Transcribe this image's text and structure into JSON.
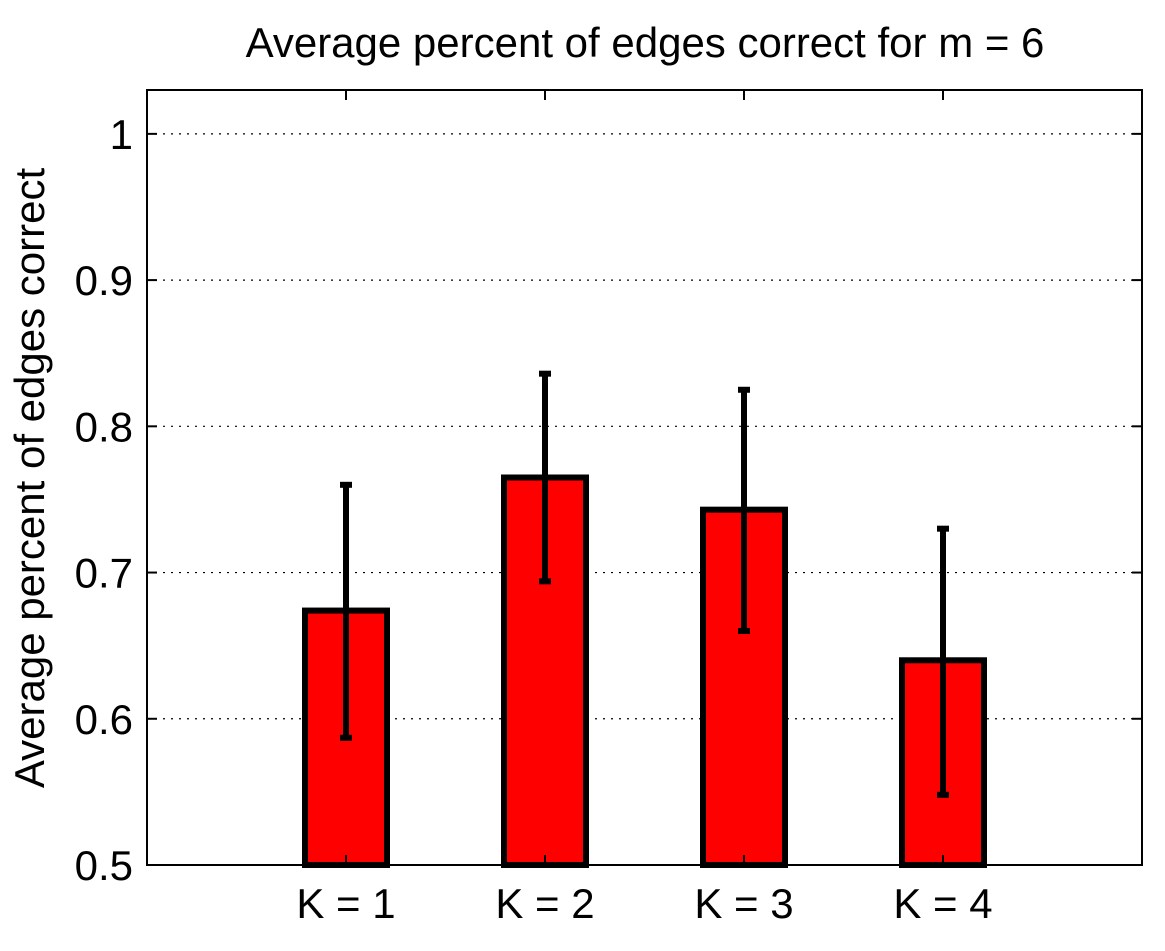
{
  "chart_data": {
    "type": "bar",
    "title": "Average percent of edges correct for m = 6",
    "xlabel": "",
    "ylabel": "Average percent of edges correct",
    "categories": [
      "K = 1",
      "K = 2",
      "K = 3",
      "K = 4"
    ],
    "values": [
      0.674,
      0.765,
      0.743,
      0.64
    ],
    "error_low": [
      0.587,
      0.694,
      0.66,
      0.548
    ],
    "error_high": [
      0.76,
      0.836,
      0.825,
      0.73
    ],
    "ylim": [
      0.5,
      1.03
    ],
    "yticks": [
      0.5,
      0.6,
      0.7,
      0.8,
      0.9,
      1
    ],
    "ytick_labels": [
      "0.5",
      "0.6",
      "0.7",
      "0.8",
      "0.9",
      "1"
    ],
    "grid": "horizontal dotted",
    "bar_color": "#ff0000",
    "edge_color": "#000000",
    "error_bar_color": "#000000"
  }
}
